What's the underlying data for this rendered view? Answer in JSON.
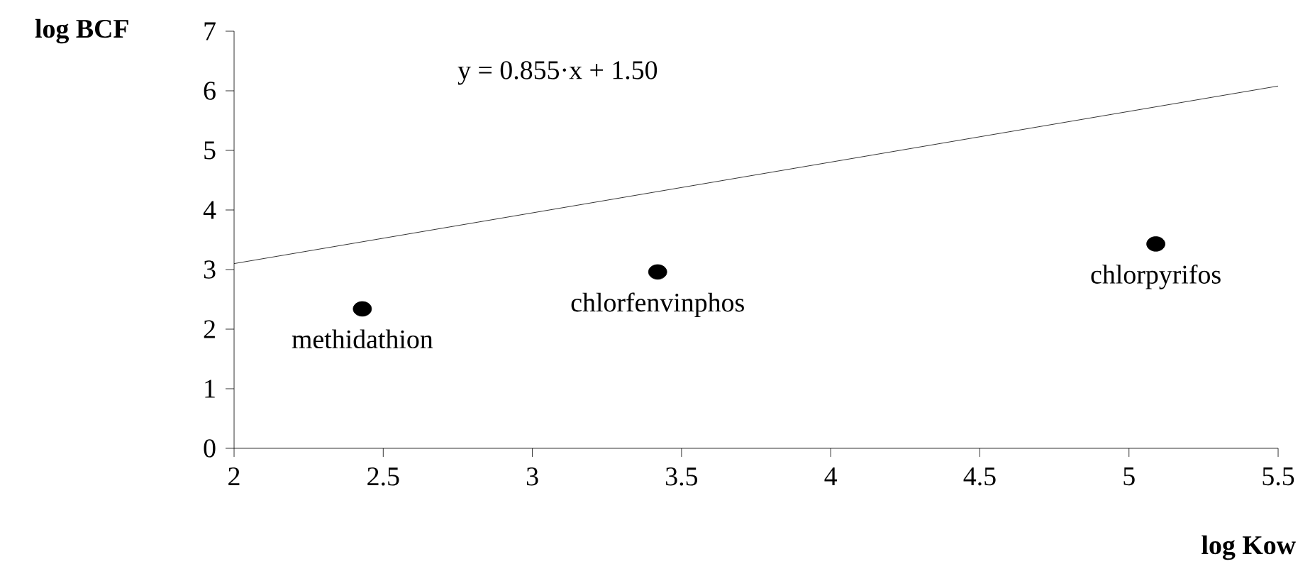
{
  "chart_data": {
    "type": "scatter",
    "xlabel": "log Kow",
    "ylabel": "log BCF",
    "xlim": [
      2,
      5.5
    ],
    "ylim": [
      0,
      7
    ],
    "xticks": [
      2,
      2.5,
      3,
      3.5,
      4,
      4.5,
      5,
      5.5
    ],
    "yticks": [
      0,
      1,
      2,
      3,
      4,
      5,
      6,
      7
    ],
    "series": [
      {
        "type": "scatter",
        "color": "#000000",
        "marker": "circle",
        "x": [
          2.43,
          3.42,
          5.09
        ],
        "values": [
          2.34,
          2.96,
          3.43
        ]
      },
      {
        "type": "line",
        "color": "#000000",
        "x": [
          2,
          5.5
        ],
        "values": [
          3.1,
          6.08
        ],
        "marker": "none",
        "line_style": "solid"
      }
    ],
    "annotations": [
      "y = 0.855·x + 1.50",
      {
        "text": "methidathion",
        "x": 2.43,
        "y": 2.34
      },
      {
        "text": "chlorfenvinphos",
        "x": 3.42,
        "y": 2.96
      },
      {
        "text": "chlorpyrifos",
        "x": 5.09,
        "y": 3.43
      }
    ]
  }
}
